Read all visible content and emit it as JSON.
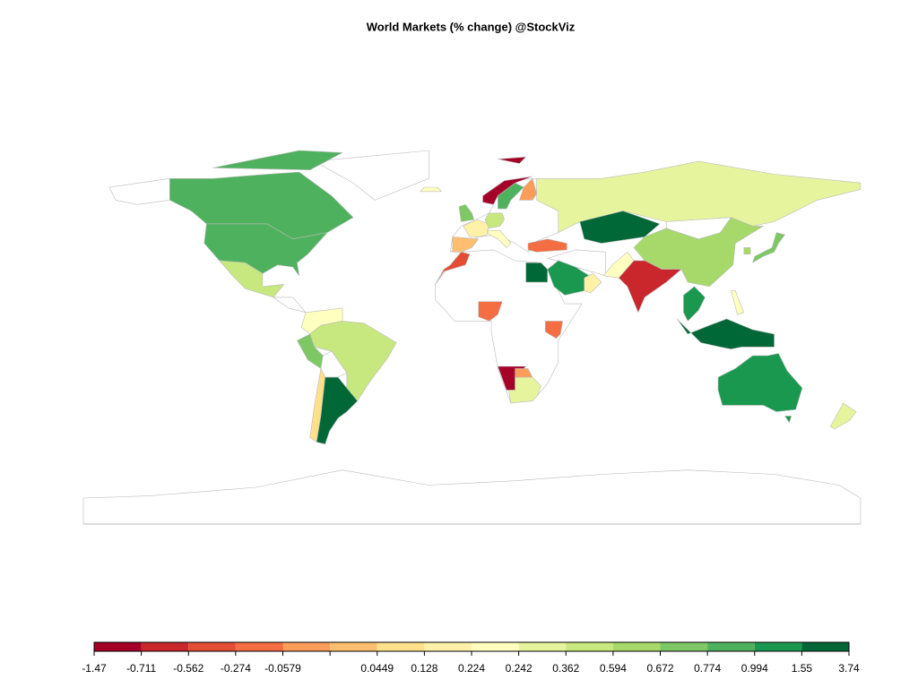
{
  "chart_data": {
    "type": "choropleth",
    "title": "World Markets (% change) @StockViz",
    "breaks": [
      -1.47,
      -0.711,
      -0.562,
      -0.274,
      -0.0579,
      null,
      0.0449,
      0.128,
      0.224,
      0.242,
      0.362,
      0.594,
      0.672,
      0.774,
      0.994,
      1.55,
      3.74
    ],
    "colors": [
      "#a50026",
      "#c9272c",
      "#e34d34",
      "#f46d43",
      "#fb9d59",
      "#fdbf6f",
      "#fee08b",
      "#fff1a8",
      "#ffffbf",
      "#e6f59d",
      "#c7e77f",
      "#a6d96a",
      "#7dc765",
      "#4eb15d",
      "#1a9850",
      "#006837"
    ]
  }
}
